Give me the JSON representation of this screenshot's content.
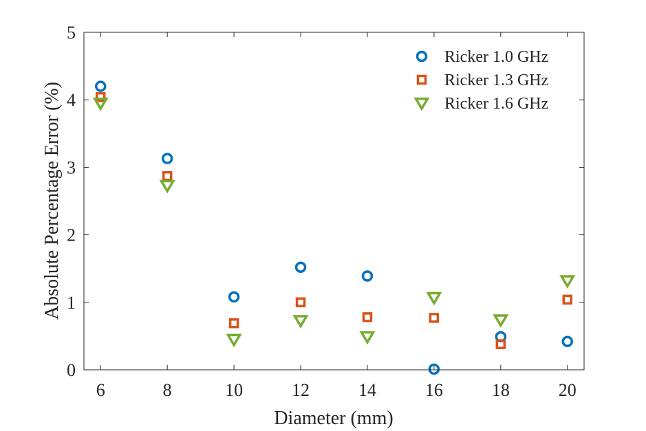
{
  "chart_data": {
    "type": "scatter",
    "title": "",
    "xlabel": "Diameter (mm)",
    "ylabel": "Absolute Percentage Error (%)",
    "xlim": [
      5.5,
      20.5
    ],
    "ylim": [
      0,
      5
    ],
    "xticks": [
      6,
      8,
      10,
      12,
      14,
      16,
      18,
      20
    ],
    "yticks": [
      0,
      1,
      2,
      3,
      4,
      5
    ],
    "x": [
      6,
      8,
      10,
      12,
      14,
      16,
      18,
      20
    ],
    "legend_position": "top-right",
    "grid": false,
    "series": [
      {
        "name": "Ricker 1.0 GHz",
        "marker": "circle",
        "color": "#0072BD",
        "values": [
          4.2,
          3.13,
          1.08,
          1.52,
          1.39,
          0.01,
          0.49,
          0.42
        ]
      },
      {
        "name": "Ricker 1.3 GHz",
        "marker": "square",
        "color": "#D95319",
        "values": [
          4.04,
          2.87,
          0.69,
          1.0,
          0.78,
          0.77,
          0.38,
          1.04
        ]
      },
      {
        "name": "Ricker 1.6 GHz",
        "marker": "triangle-down",
        "color": "#77AC30",
        "values": [
          3.95,
          2.73,
          0.45,
          0.73,
          0.49,
          1.07,
          0.74,
          1.32
        ]
      }
    ]
  }
}
